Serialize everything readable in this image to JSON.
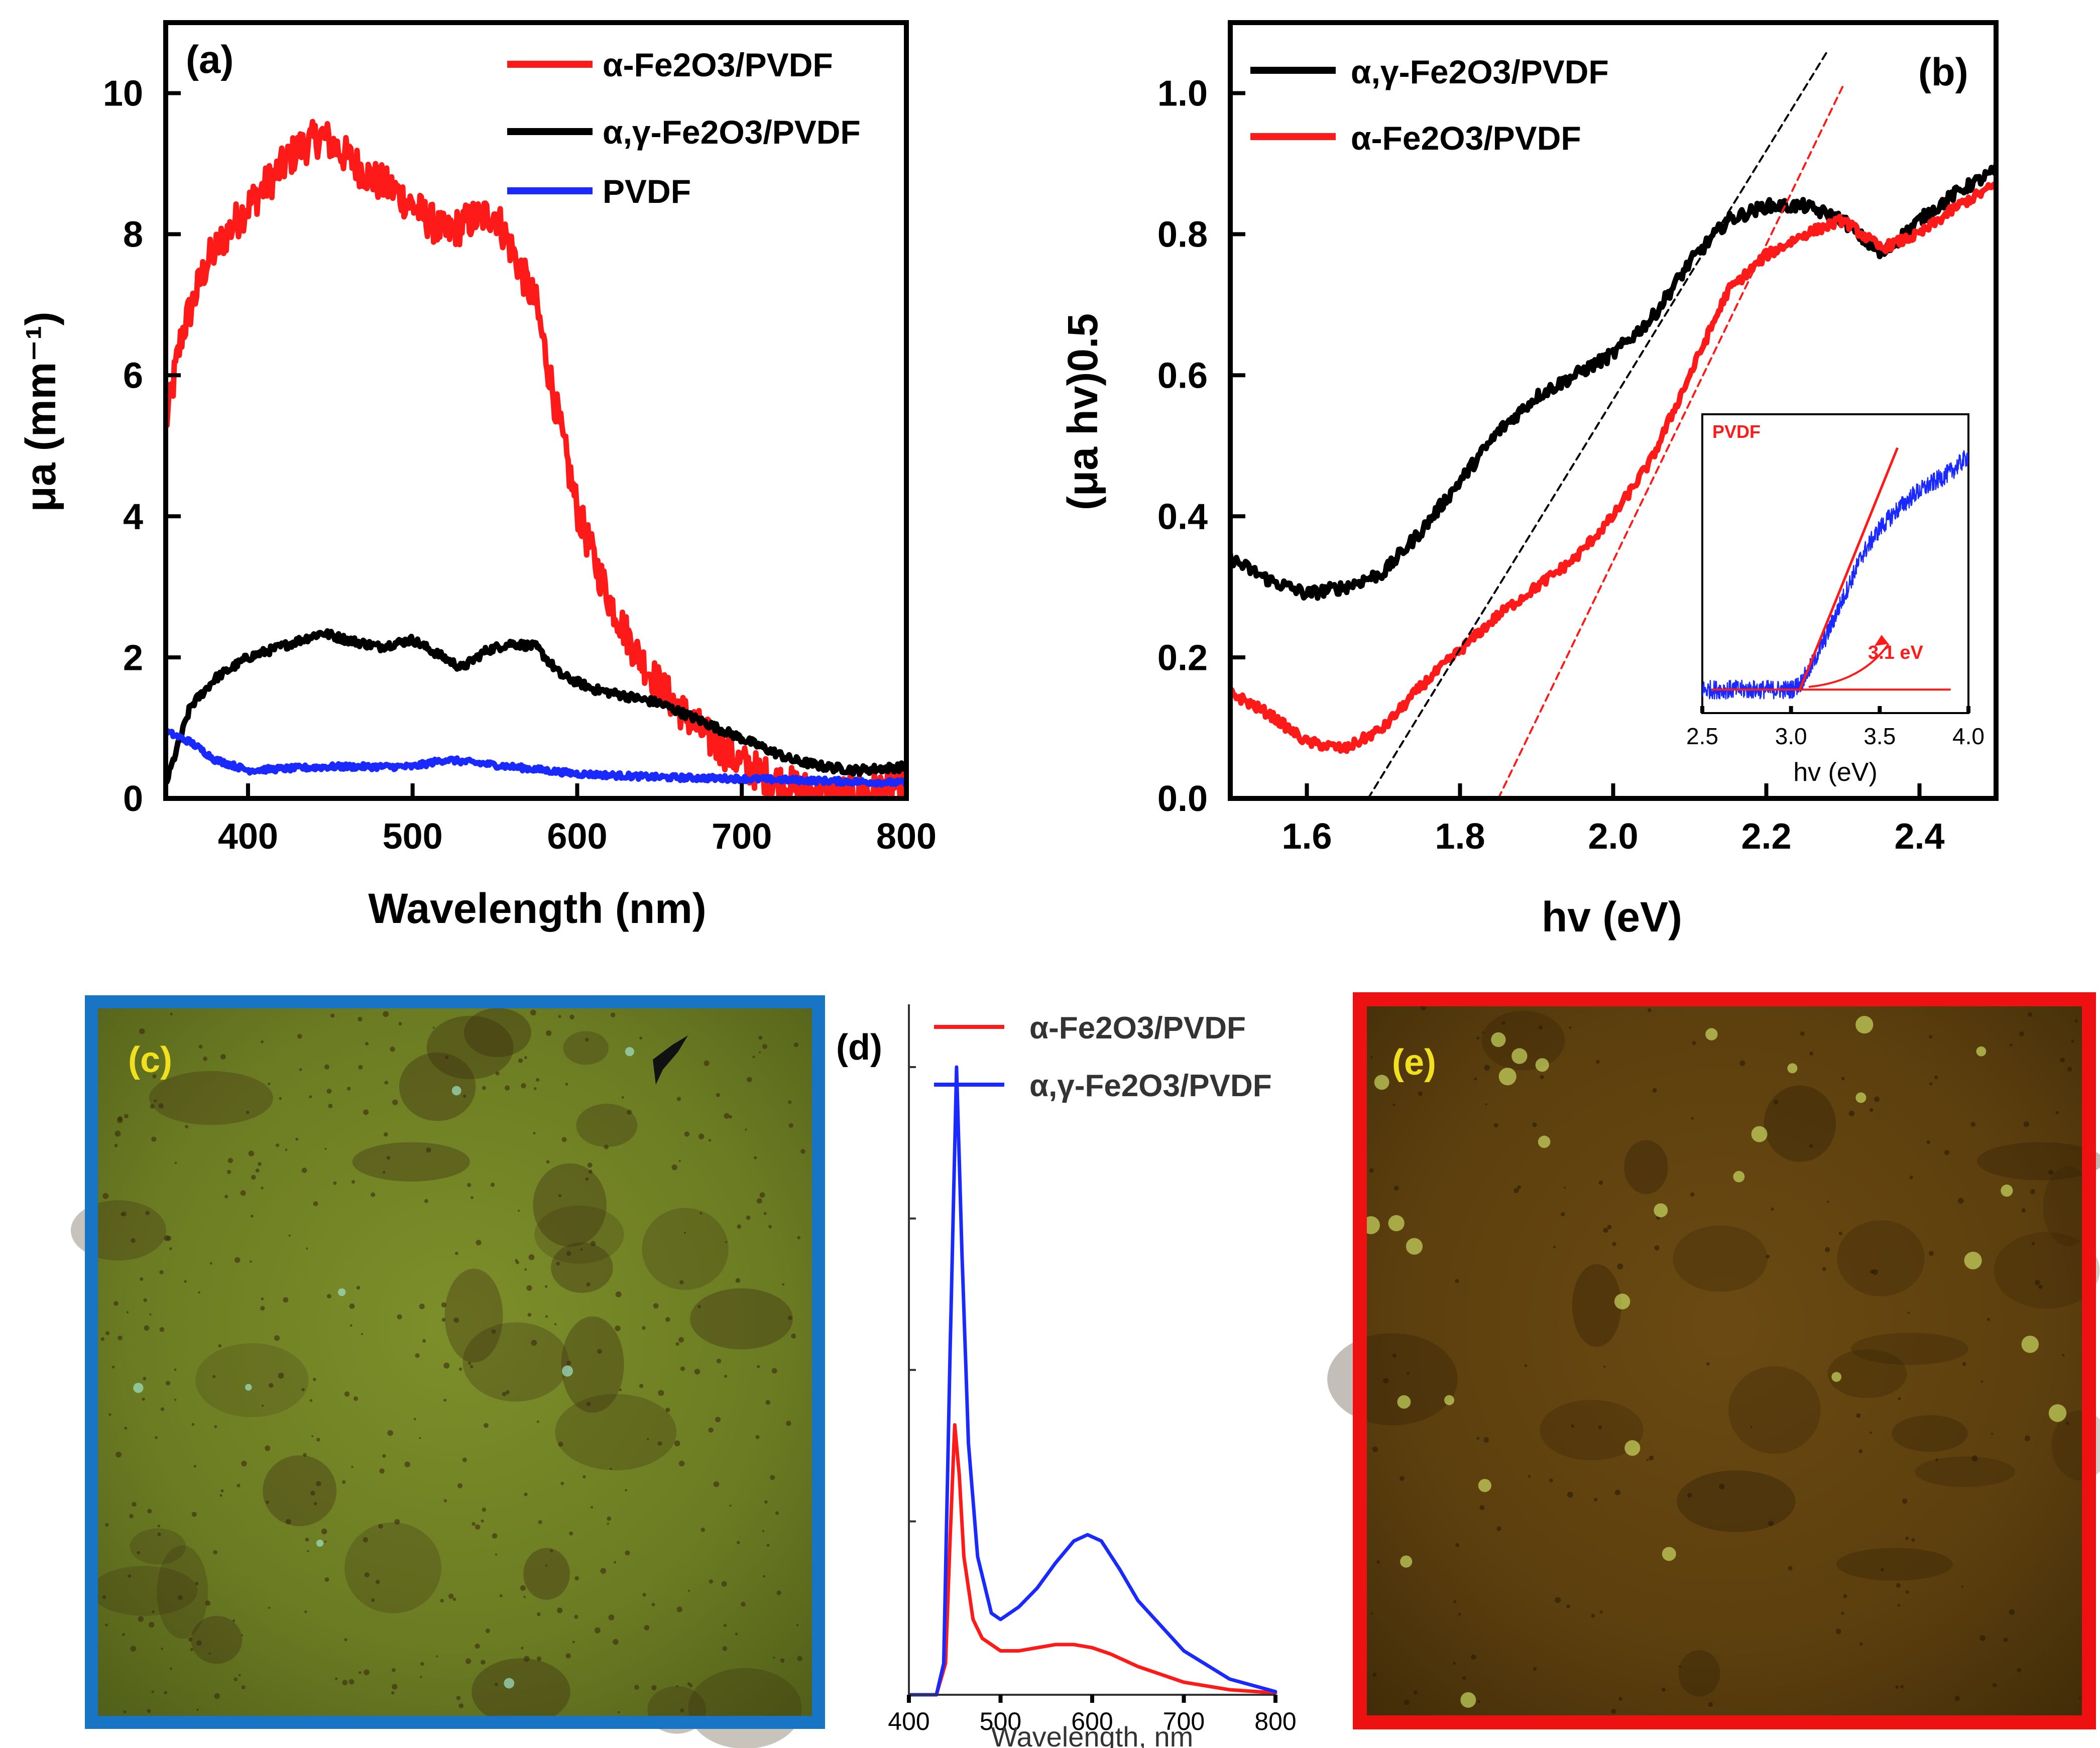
{
  "chart_data": [
    {
      "panel": "(a)",
      "type": "line",
      "title": "",
      "xlabel": "Wavelength (nm)",
      "ylabel": "μa (mm⁻¹)",
      "xlim": [
        350,
        800
      ],
      "ylim": [
        0,
        11
      ],
      "xticks": [
        "400",
        "500",
        "600",
        "700",
        "800"
      ],
      "yticks": [
        "0",
        "2",
        "4",
        "6",
        "8",
        "10"
      ],
      "legend_position": "top-right",
      "series": [
        {
          "name": "α-Fe2O3/PVDF",
          "color": "#ff1a1a",
          "x": [
            350,
            360,
            375,
            390,
            400,
            415,
            430,
            445,
            460,
            475,
            490,
            505,
            520,
            535,
            550,
            560,
            575,
            590,
            600,
            610,
            620,
            635,
            650,
            665,
            680,
            700,
            720,
            740,
            760,
            780,
            800
          ],
          "y": [
            5.3,
            6.6,
            7.6,
            8.1,
            8.4,
            8.8,
            9.2,
            9.4,
            9.1,
            8.8,
            8.6,
            8.3,
            8.0,
            8.2,
            8.3,
            7.8,
            7.0,
            5.2,
            4.1,
            3.4,
            2.8,
            2.1,
            1.6,
            1.2,
            0.85,
            0.5,
            0.25,
            0.1,
            0.05,
            0.1,
            0.2
          ]
        },
        {
          "name": "α,γ-Fe2O3/PVDF",
          "color": "#000000",
          "x": [
            350,
            365,
            380,
            400,
            420,
            445,
            460,
            480,
            500,
            515,
            530,
            545,
            560,
            575,
            590,
            610,
            630,
            650,
            670,
            690,
            710,
            730,
            750,
            770,
            800
          ],
          "y": [
            0.2,
            1.3,
            1.7,
            2.0,
            2.15,
            2.35,
            2.25,
            2.15,
            2.25,
            2.05,
            1.85,
            2.1,
            2.2,
            2.15,
            1.75,
            1.55,
            1.45,
            1.35,
            1.15,
            0.95,
            0.75,
            0.55,
            0.45,
            0.4,
            0.45
          ]
        },
        {
          "name": "PVDF",
          "color": "#1a2aff",
          "x": [
            350,
            365,
            380,
            400,
            450,
            500,
            520,
            560,
            600,
            650,
            700,
            750,
            800
          ],
          "y": [
            0.95,
            0.8,
            0.55,
            0.4,
            0.45,
            0.45,
            0.55,
            0.45,
            0.35,
            0.3,
            0.28,
            0.25,
            0.22
          ]
        }
      ]
    },
    {
      "panel": "(b)",
      "type": "line",
      "title": "",
      "xlabel": "hv (eV)",
      "ylabel": "(μa hv)0.5",
      "xlim": [
        1.5,
        2.5
      ],
      "ylim": [
        0,
        1.1
      ],
      "xticks": [
        "1.6",
        "1.8",
        "2.0",
        "2.2",
        "2.4"
      ],
      "yticks": [
        "0.0",
        "0.2",
        "0.4",
        "0.6",
        "0.8",
        "1.0"
      ],
      "legend_position": "top-left",
      "series": [
        {
          "name": "α,γ-Fe2O3/PVDF",
          "color": "#000000",
          "x": [
            1.5,
            1.55,
            1.6,
            1.65,
            1.7,
            1.75,
            1.8,
            1.85,
            1.9,
            1.95,
            2.0,
            2.05,
            2.1,
            2.15,
            2.2,
            2.25,
            2.3,
            2.35,
            2.4,
            2.45,
            2.5
          ],
          "y": [
            0.34,
            0.31,
            0.29,
            0.3,
            0.32,
            0.38,
            0.45,
            0.52,
            0.57,
            0.6,
            0.63,
            0.68,
            0.76,
            0.82,
            0.84,
            0.84,
            0.82,
            0.77,
            0.82,
            0.86,
            0.89
          ]
        },
        {
          "name": "α-Fe2O3/PVDF",
          "color": "#ff1a1a",
          "x": [
            1.5,
            1.55,
            1.6,
            1.65,
            1.7,
            1.75,
            1.8,
            1.85,
            1.9,
            1.95,
            2.0,
            2.05,
            2.1,
            2.15,
            2.2,
            2.25,
            2.3,
            2.35,
            2.4,
            2.45,
            2.5
          ],
          "y": [
            0.15,
            0.12,
            0.08,
            0.07,
            0.1,
            0.16,
            0.21,
            0.26,
            0.3,
            0.34,
            0.4,
            0.48,
            0.6,
            0.72,
            0.77,
            0.8,
            0.82,
            0.78,
            0.8,
            0.84,
            0.87
          ]
        },
        {
          "name": "Tauc fit α,γ-Fe2O3/PVDF (dashed)",
          "color": "#000000",
          "x": [
            1.68,
            2.28
          ],
          "y": [
            0.0,
            1.06
          ]
        },
        {
          "name": "Tauc fit α-Fe2O3/PVDF (dashed)",
          "color": "#ff1a1a",
          "x": [
            1.85,
            2.3
          ],
          "y": [
            0.0,
            1.01
          ]
        }
      ],
      "inset": {
        "label": "PVDF",
        "xlabel": "hv (eV)",
        "xlim": [
          2.5,
          4.0
        ],
        "xticks": [
          "2.5",
          "3.0",
          "3.5",
          "4.0"
        ],
        "annotation": "3.1 eV",
        "series": [
          {
            "name": "PVDF",
            "color": "#1a2aff",
            "x": [
              2.5,
              2.8,
              3.0,
              3.05,
              3.1,
              3.2,
              3.3,
              3.4,
              3.5,
              3.6,
              3.7,
              3.8,
              3.9,
              4.0
            ],
            "y": [
              0.05,
              0.05,
              0.05,
              0.07,
              0.12,
              0.25,
              0.4,
              0.55,
              0.65,
              0.72,
              0.78,
              0.82,
              0.86,
              0.92
            ]
          }
        ]
      }
    },
    {
      "panel": "(d)",
      "type": "line",
      "title": "",
      "xlabel": "Wavelength, nm",
      "ylabel": "",
      "xlim": [
        400,
        800
      ],
      "ylim": [
        0,
        1.1
      ],
      "xticks": [
        "400",
        "500",
        "600",
        "700",
        "800"
      ],
      "legend_position": "top-right",
      "series": [
        {
          "name": "α-Fe2O3/PVDF",
          "color": "#ff1a1a",
          "x": [
            400,
            430,
            440,
            445,
            450,
            455,
            460,
            470,
            480,
            500,
            520,
            540,
            560,
            580,
            600,
            620,
            650,
            700,
            750,
            800
          ],
          "y": [
            0.0,
            0.0,
            0.05,
            0.25,
            0.43,
            0.35,
            0.22,
            0.12,
            0.09,
            0.07,
            0.07,
            0.075,
            0.08,
            0.08,
            0.075,
            0.065,
            0.045,
            0.02,
            0.008,
            0.003
          ]
        },
        {
          "name": "α,γ-Fe2O3/PVDF",
          "color": "#1a2aff",
          "x": [
            400,
            430,
            438,
            445,
            452,
            458,
            465,
            475,
            490,
            500,
            520,
            540,
            560,
            580,
            595,
            610,
            630,
            650,
            700,
            750,
            800
          ],
          "y": [
            0.0,
            0.0,
            0.05,
            0.55,
            1.0,
            0.7,
            0.4,
            0.22,
            0.13,
            0.12,
            0.14,
            0.17,
            0.21,
            0.245,
            0.255,
            0.245,
            0.2,
            0.15,
            0.07,
            0.025,
            0.005
          ]
        }
      ]
    }
  ],
  "panels": {
    "a": {
      "label": "(a)"
    },
    "b": {
      "label": "(b)"
    },
    "c": {
      "label": "(c)",
      "frame_color": "#1874c4"
    },
    "d": {
      "label": "(d)"
    },
    "e": {
      "label": "(e)",
      "frame_color": "#ee1111"
    }
  },
  "colors": {
    "red": "#ff1a1a",
    "black": "#000000",
    "blue": "#1a2aff",
    "label_yellow": "#f0e020"
  }
}
